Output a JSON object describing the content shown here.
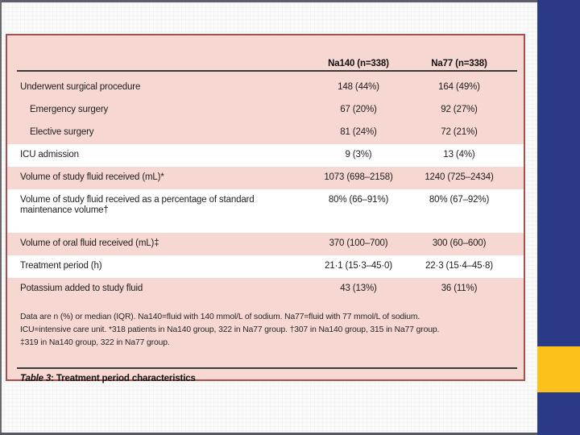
{
  "slide": {
    "colors": {
      "navy_accent": "#2b3a87",
      "yellow_accent": "#fcc21b",
      "table_pink": "#f6d7d1",
      "table_border_red": "#a6504e"
    }
  },
  "table": {
    "caption_prefix": "Table 3",
    "caption_rest": ": Treatment period characteristics",
    "header": {
      "col_na140": "Na140 (n=338)",
      "col_na77": "Na77 (n=338)"
    },
    "rows": [
      {
        "label": "Underwent surgical procedure",
        "na140": "148 (44%)",
        "na77": "164 (49%)",
        "indent": false,
        "white": false,
        "tall": false
      },
      {
        "label": "Emergency surgery",
        "na140": "67 (20%)",
        "na77": "92 (27%)",
        "indent": true,
        "white": false,
        "tall": false
      },
      {
        "label": "Elective surgery",
        "na140": "81 (24%)",
        "na77": "72 (21%)",
        "indent": true,
        "white": false,
        "tall": false
      },
      {
        "label": "ICU admission",
        "na140": "9 (3%)",
        "na77": "13 (4%)",
        "indent": false,
        "white": true,
        "tall": false
      },
      {
        "label": "Volume of study fluid received (mL)*",
        "na140": "1073 (698–2158)",
        "na77": "1240 (725–2434)",
        "indent": false,
        "white": false,
        "tall": false
      },
      {
        "label": "Volume of study fluid received as a percentage of standard maintenance volume†",
        "na140": "80% (66–91%)",
        "na77": "80% (67–92%)",
        "indent": false,
        "white": true,
        "tall": true
      },
      {
        "label": "Volume of oral fluid received (mL)‡",
        "na140": "370 (100–700)",
        "na77": "300 (60–600)",
        "indent": false,
        "white": false,
        "tall": false
      },
      {
        "label": "Treatment period (h)",
        "na140": "21·1 (15·3–45·0)",
        "na77": "22·3 (15·4–45·8)",
        "indent": false,
        "white": true,
        "tall": false
      },
      {
        "label": "Potassium added to study fluid",
        "na140": "43 (13%)",
        "na77": "36 (11%)",
        "indent": false,
        "white": false,
        "tall": false
      }
    ],
    "footnote_lines": [
      "Data are n (%) or median (IQR). Na140=fluid with 140 mmol/L of sodium. Na77=fluid with 77 mmol/L of sodium.",
      "ICU=intensive care unit. *318 patients in Na140 group, 322 in Na77 group. †307 in Na140 group, 315 in Na77 group.",
      "‡319 in Na140 group, 322 in Na77 group."
    ]
  }
}
